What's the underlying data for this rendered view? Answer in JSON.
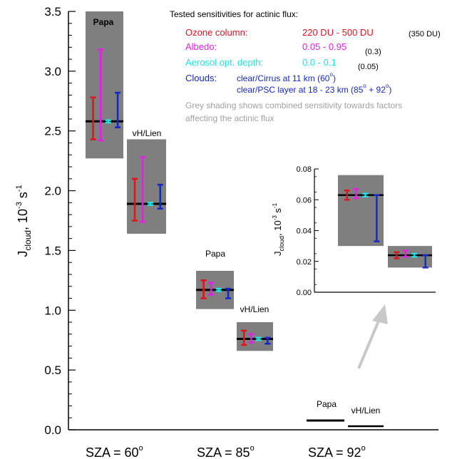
{
  "chart_data": {
    "type": "bar",
    "title": "",
    "ylabel_main": "J",
    "ylabel_sub": "cloud",
    "ylabel_unit": ", 10",
    "ylabel_exp": "-3",
    "ylabel_unit2": " s",
    "ylabel_exp2": "-1",
    "ylim": [
      0,
      3.5
    ],
    "yticks": [
      "0.0",
      "0.5",
      "1.0",
      "1.5",
      "2.0",
      "2.5",
      "3.0",
      "3.5"
    ],
    "xticks": [
      {
        "label": "SZA = 60",
        "deg": "o"
      },
      {
        "label": "SZA = 85",
        "deg": "o"
      },
      {
        "label": "SZA = 92",
        "deg": "o"
      }
    ],
    "colors": {
      "ozone": "#e0141e",
      "albedo": "#e61ee6",
      "aerosol": "#1ee1e6",
      "clouds": "#1428c8",
      "shade": "#7f7f7f",
      "arrow": "#c8c8c8"
    },
    "groups": [
      {
        "sza": 60,
        "label": "Papa",
        "value": 2.58,
        "shade": [
          2.27,
          3.5
        ],
        "errors": {
          "ozone": [
            2.43,
            2.78
          ],
          "albedo": [
            2.42,
            3.18
          ],
          "aerosol": [
            2.57,
            2.59
          ],
          "clouds": [
            2.53,
            2.82
          ]
        }
      },
      {
        "sza": 60,
        "label": "vH/Lien",
        "value": 1.89,
        "shade": [
          1.64,
          2.43
        ],
        "errors": {
          "ozone": [
            1.75,
            2.1
          ],
          "albedo": [
            1.74,
            2.28
          ],
          "aerosol": [
            1.88,
            1.9
          ],
          "clouds": [
            1.85,
            2.05
          ]
        }
      },
      {
        "sza": 85,
        "label": "Papa",
        "value": 1.17,
        "shade": [
          1.01,
          1.33
        ],
        "errors": {
          "ozone": [
            1.1,
            1.25
          ],
          "albedo": [
            1.13,
            1.23
          ],
          "aerosol": [
            1.16,
            1.18
          ],
          "clouds": [
            1.1,
            1.18
          ]
        }
      },
      {
        "sza": 85,
        "label": "vH/Lien",
        "value": 0.76,
        "shade": [
          0.66,
          0.9
        ],
        "errors": {
          "ozone": [
            0.71,
            0.83
          ],
          "albedo": [
            0.73,
            0.8
          ],
          "aerosol": [
            0.75,
            0.77
          ],
          "clouds": [
            0.72,
            0.77
          ]
        }
      },
      {
        "sza": 92,
        "label": "Papa",
        "value": 0.063,
        "shade": [
          0.03,
          0.076
        ],
        "errors": {
          "ozone": [
            0.06,
            0.066
          ],
          "albedo": [
            0.061,
            0.067
          ],
          "aerosol": [
            0.062,
            0.064
          ],
          "clouds": [
            0.033,
            0.063
          ]
        }
      },
      {
        "sza": 92,
        "label": "vH/Lien",
        "value": 0.024,
        "shade": [
          0.016,
          0.03
        ],
        "errors": {
          "ozone": [
            0.022,
            0.026
          ],
          "albedo": [
            0.023,
            0.027
          ],
          "aerosol": [
            0.023,
            0.025
          ],
          "clouds": [
            0.016,
            0.024
          ]
        }
      }
    ],
    "inset": {
      "ylim": [
        0,
        0.08
      ],
      "yticks": [
        "0.00",
        "0.02",
        "0.04",
        "0.06",
        "0.08"
      ],
      "ylabel_main": "J",
      "ylabel_sub": "cloud",
      "ylabel_unit": ", 10",
      "ylabel_exp": "-3",
      "ylabel_unit2": " s",
      "ylabel_exp2": "-1"
    },
    "legend": {
      "title": "Tested sensitivities for actinic flux:",
      "rows": [
        {
          "name": "Ozone column:",
          "range": "220 DU - 500 DU",
          "default": "(350 DU)",
          "color": "#e0141e"
        },
        {
          "name": "Albedo:",
          "range": "0.05 - 0.95",
          "default": "(0.3)",
          "color": "#e61ee6"
        },
        {
          "name": "Aerosol opt. depth:",
          "range": "0.0 - 0.1",
          "default": "(0.05)",
          "color": "#1ee1e6"
        }
      ],
      "clouds_name": "Clouds:",
      "clouds_line1": "clear/Cirrus at 11 km (60",
      "clouds_line1_end": ")",
      "clouds_line2": "clear/PSC layer at 18 - 23 km (85",
      "clouds_line2_mid": " + 92",
      "clouds_line2_end": ")",
      "deg": "o",
      "note_line1": "Grey shading shows combined sensitivity towards factors",
      "note_line2": "affecting the actinic flux"
    }
  }
}
